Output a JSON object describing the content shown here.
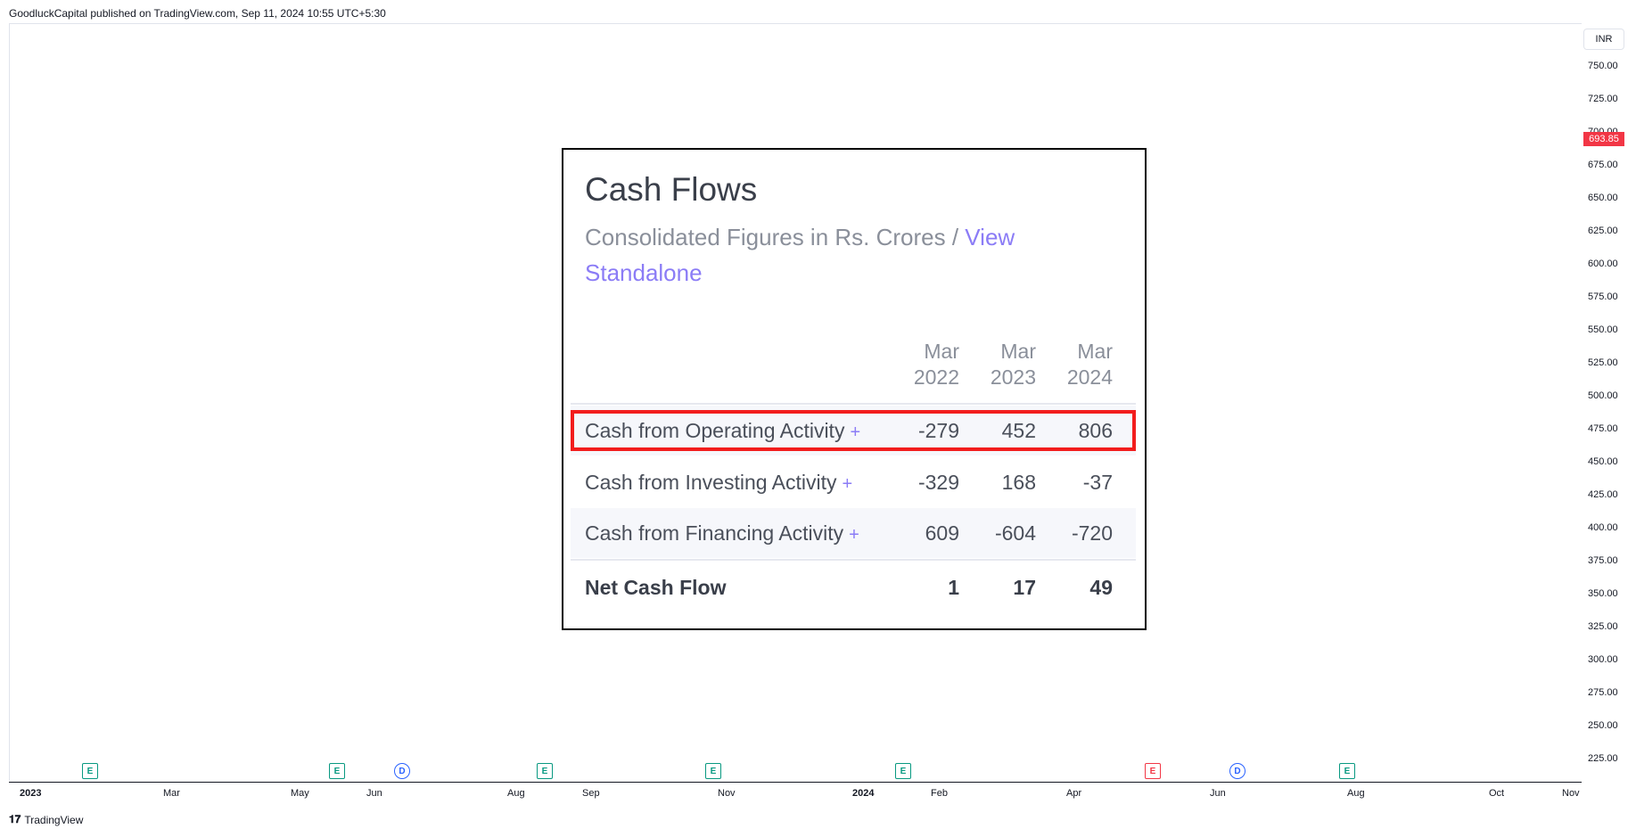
{
  "header": {
    "text": "GoodluckCapital published on TradingView.com, Sep 11, 2024 10:55 UTC+5:30"
  },
  "price_axis": {
    "currency": "INR",
    "current_price": "693.85",
    "ticks": [
      "750.00",
      "725.00",
      "700.00",
      "675.00",
      "650.00",
      "625.00",
      "600.00",
      "575.00",
      "550.00",
      "525.00",
      "500.00",
      "475.00",
      "450.00",
      "425.00",
      "400.00",
      "375.00",
      "350.00",
      "325.00",
      "300.00",
      "275.00",
      "250.00",
      "225.00"
    ]
  },
  "time_axis": {
    "labels": [
      "2023",
      "Mar",
      "May",
      "Jun",
      "Aug",
      "Sep",
      "Nov",
      "2024",
      "Feb",
      "Apr",
      "Jun",
      "Aug",
      "Oct",
      "Nov"
    ]
  },
  "events": [
    "E",
    "E",
    "D",
    "E",
    "E",
    "E",
    "E",
    "D",
    "E"
  ],
  "footer": {
    "brand": "TradingView"
  },
  "card": {
    "title": "Cash Flows",
    "subtitle": "Consolidated Figures in Rs. Crores / ",
    "link": "View Standalone",
    "columns": [
      {
        "month": "Mar",
        "year": "2022"
      },
      {
        "month": "Mar",
        "year": "2023"
      },
      {
        "month": "Mar",
        "year": "2024"
      }
    ],
    "rows": [
      {
        "label": "Cash from Operating Activity",
        "plus": "+",
        "values": [
          "-279",
          "452",
          "806"
        ]
      },
      {
        "label": "Cash from Investing Activity",
        "plus": "+",
        "values": [
          "-329",
          "168",
          "-37"
        ]
      },
      {
        "label": "Cash from Financing Activity",
        "plus": "+",
        "values": [
          "609",
          "-604",
          "-720"
        ]
      },
      {
        "label": "Net Cash Flow",
        "plus": "",
        "values": [
          "1",
          "17",
          "49"
        ]
      }
    ]
  }
}
